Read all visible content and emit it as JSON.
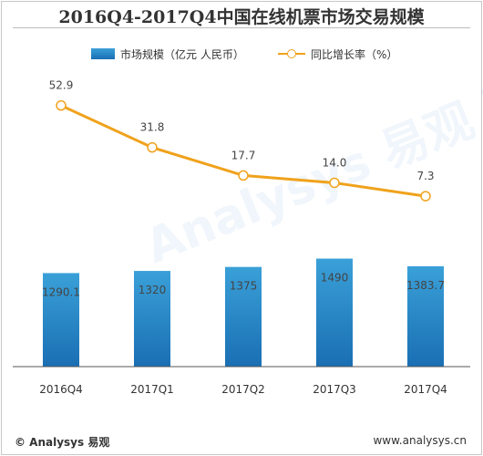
{
  "title": "2016Q4-2017Q4中国在线机票市场交易规模",
  "footer": {
    "left": "© Analysys 易观",
    "right": "www.analysys.cn"
  },
  "watermark": "Analysys 易观 要的数据分析",
  "colors": {
    "bar_top": "#3aa0d8",
    "bar_bottom": "#1a6fb3",
    "line": "#f0a21c",
    "axis": "#555555"
  },
  "chart_data": {
    "type": "bar",
    "categories": [
      "2016Q4",
      "2017Q1",
      "2017Q2",
      "2017Q3",
      "2017Q4"
    ],
    "series": [
      {
        "name": "市场规模（亿元 人民币）",
        "type": "bar",
        "values": [
          1290.1,
          1320,
          1375,
          1490,
          1383.7
        ],
        "labels": [
          "1290.1",
          "1320",
          "1375",
          "1490",
          "1383.7"
        ]
      },
      {
        "name": "同比增长率（%）",
        "type": "line",
        "values": [
          52.9,
          31.8,
          17.7,
          14.0,
          7.3
        ],
        "labels": [
          "52.9",
          "31.8",
          "17.7",
          "14.0",
          "7.3"
        ]
      }
    ],
    "legend_position": "top"
  }
}
